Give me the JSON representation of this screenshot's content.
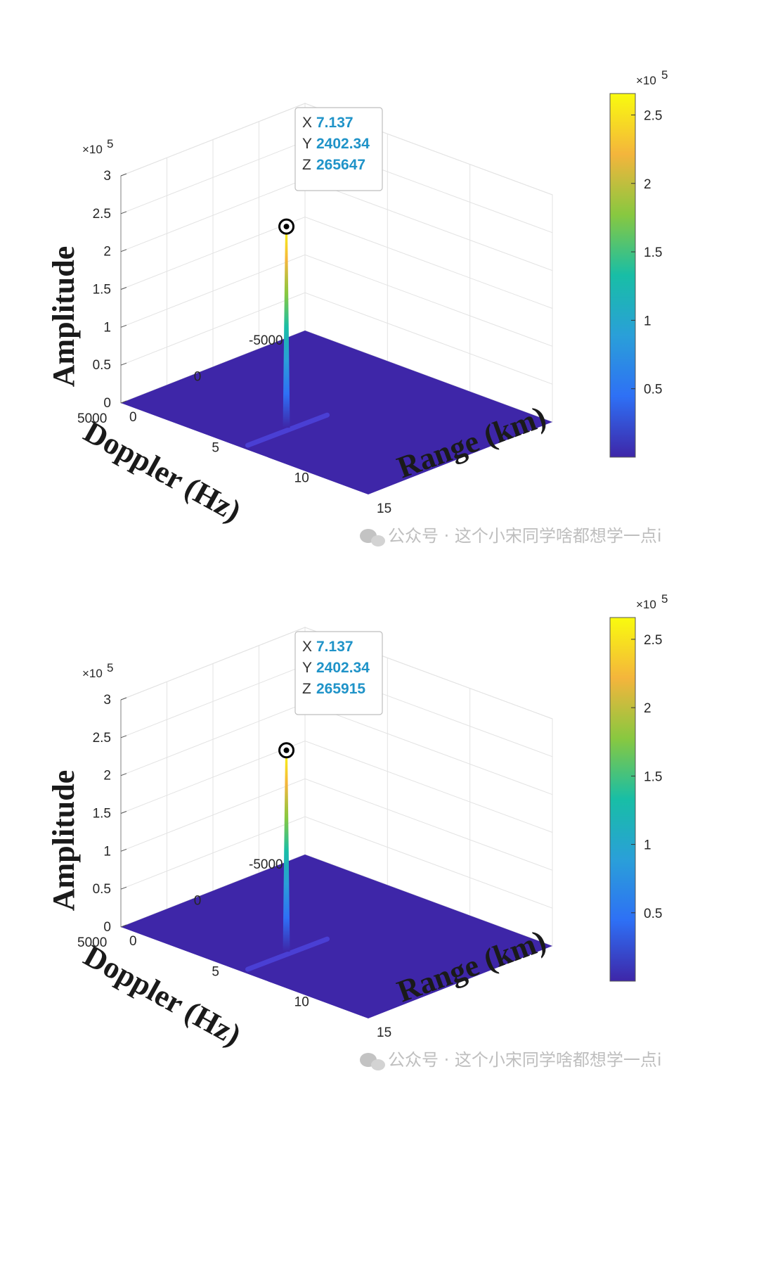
{
  "chart_data": [
    {
      "type": "surface",
      "xlabel": "Range (km)",
      "ylabel": "Doppler (Hz)",
      "zlabel": "Amplitude",
      "xlim": [
        0,
        15
      ],
      "ylim": [
        -5000,
        5000
      ],
      "zlim": [
        0,
        300000
      ],
      "x_ticks": [
        "0",
        "5",
        "10",
        "15"
      ],
      "y_ticks": [
        "5000",
        "0",
        "-5000"
      ],
      "z_ticks": [
        "0",
        "0.5",
        "1",
        "1.5",
        "2",
        "2.5",
        "3"
      ],
      "z_exponent": "×10",
      "z_exponent_power": "5",
      "colorbar_ticks": [
        "0.5",
        "1",
        "1.5",
        "2",
        "2.5"
      ],
      "colorbar_exponent": "×10",
      "colorbar_exponent_power": "5",
      "colorbar_range": [
        0,
        265647
      ],
      "peak": {
        "x": 7.137,
        "y": 2402.34,
        "z": 265647
      },
      "datatip": {
        "x_key": "X",
        "x_value": "7.137",
        "y_key": "Y",
        "y_value": "2402.34",
        "z_key": "Z",
        "z_value": "265647"
      },
      "colormap": [
        "#3e26a8",
        "#2e70f5",
        "#2a9fd9",
        "#18bea6",
        "#88c840",
        "#f4b53c",
        "#f9fb0e"
      ],
      "surface_color": "#3e26a8",
      "watermark": "公众号 · 这个小宋同学啥都想学一点i"
    },
    {
      "type": "surface",
      "xlabel": "Range (km)",
      "ylabel": "Doppler (Hz)",
      "zlabel": "Amplitude",
      "xlim": [
        0,
        15
      ],
      "ylim": [
        -5000,
        5000
      ],
      "zlim": [
        0,
        300000
      ],
      "x_ticks": [
        "0",
        "5",
        "10",
        "15"
      ],
      "y_ticks": [
        "5000",
        "0",
        "-5000"
      ],
      "z_ticks": [
        "0",
        "0.5",
        "1",
        "1.5",
        "2",
        "2.5",
        "3"
      ],
      "z_exponent": "×10",
      "z_exponent_power": "5",
      "colorbar_ticks": [
        "0.5",
        "1",
        "1.5",
        "2",
        "2.5"
      ],
      "colorbar_exponent": "×10",
      "colorbar_exponent_power": "5",
      "colorbar_range": [
        0,
        265915
      ],
      "peak": {
        "x": 7.137,
        "y": 2402.34,
        "z": 265915
      },
      "datatip": {
        "x_key": "X",
        "x_value": "7.137",
        "y_key": "Y",
        "y_value": "2402.34",
        "z_key": "Z",
        "z_value": "265915"
      },
      "colormap": [
        "#3e26a8",
        "#2e70f5",
        "#2a9fd9",
        "#18bea6",
        "#88c840",
        "#f4b53c",
        "#f9fb0e"
      ],
      "surface_color": "#3e26a8",
      "watermark": "公众号 · 这个小宋同学啥都想学一点i"
    }
  ]
}
